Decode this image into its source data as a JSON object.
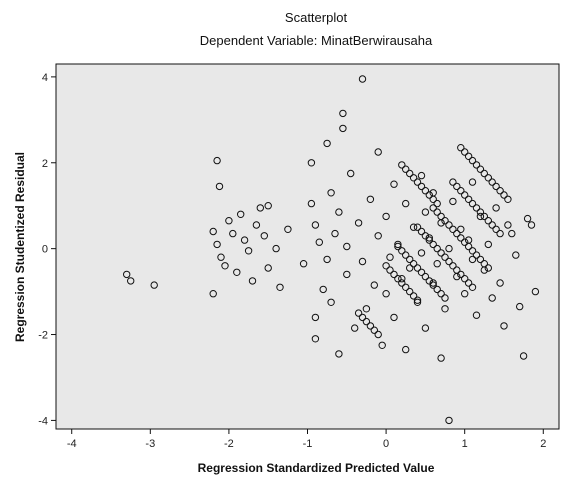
{
  "chart_data": {
    "type": "scatter",
    "title": "Scatterplot",
    "subtitle": "Dependent Variable: MinatBerwirausaha",
    "xlabel": "Regression Standardized Predicted Value",
    "ylabel": "Regression Studentized Residual",
    "xlim": [
      -4.2,
      2.2
    ],
    "ylim": [
      -4.2,
      4.3
    ],
    "x_ticks": [
      -4,
      -3,
      -2,
      -1,
      0,
      1,
      2
    ],
    "x_tick_labels": [
      "-4",
      "-3",
      "-2",
      "-1",
      "0",
      "1",
      "2"
    ],
    "y_ticks": [
      -4,
      -2,
      0,
      2,
      4
    ],
    "y_tick_labels": [
      "-4",
      "-2",
      "0",
      "2",
      "4"
    ],
    "background": "#e8e8e8",
    "marker": "open-circle",
    "grid": false,
    "legend": "none",
    "points": [
      [
        -3.3,
        -0.6
      ],
      [
        -3.25,
        -0.75
      ],
      [
        -2.95,
        -0.85
      ],
      [
        -2.2,
        -1.05
      ],
      [
        -2.15,
        2.05
      ],
      [
        -2.12,
        1.45
      ],
      [
        -2.2,
        0.4
      ],
      [
        -2.15,
        0.1
      ],
      [
        -2.1,
        -0.2
      ],
      [
        -2.05,
        -0.4
      ],
      [
        -2.0,
        0.65
      ],
      [
        -1.95,
        0.35
      ],
      [
        -1.9,
        -0.55
      ],
      [
        -1.85,
        0.8
      ],
      [
        -1.8,
        0.2
      ],
      [
        -1.75,
        -0.05
      ],
      [
        -1.7,
        -0.75
      ],
      [
        -1.65,
        0.55
      ],
      [
        -1.6,
        0.95
      ],
      [
        -1.55,
        0.3
      ],
      [
        -1.5,
        -0.45
      ],
      [
        -1.5,
        1.0
      ],
      [
        -1.4,
        0.0
      ],
      [
        -1.35,
        -0.9
      ],
      [
        -1.25,
        0.45
      ],
      [
        -1.05,
        -0.35
      ],
      [
        -0.95,
        2.0
      ],
      [
        -0.95,
        1.05
      ],
      [
        -0.9,
        -1.6
      ],
      [
        -0.9,
        -2.1
      ],
      [
        -0.9,
        0.55
      ],
      [
        -0.85,
        0.15
      ],
      [
        -0.8,
        -0.95
      ],
      [
        -0.75,
        2.45
      ],
      [
        -0.75,
        -0.25
      ],
      [
        -0.7,
        1.3
      ],
      [
        -0.7,
        -1.25
      ],
      [
        -0.65,
        0.35
      ],
      [
        -0.6,
        -2.45
      ],
      [
        -0.6,
        0.85
      ],
      [
        -0.55,
        3.15
      ],
      [
        -0.55,
        2.8
      ],
      [
        -0.5,
        -0.6
      ],
      [
        -0.5,
        0.05
      ],
      [
        -0.45,
        1.75
      ],
      [
        -0.4,
        -1.85
      ],
      [
        -0.35,
        0.6
      ],
      [
        -0.3,
        3.95
      ],
      [
        -0.3,
        -0.3
      ],
      [
        -0.25,
        -1.4
      ],
      [
        -0.2,
        1.15
      ],
      [
        -0.15,
        -0.85
      ],
      [
        -0.1,
        0.3
      ],
      [
        -0.1,
        2.25
      ],
      [
        -0.05,
        -2.25
      ],
      [
        0.0,
        -1.05
      ],
      [
        0.0,
        0.75
      ],
      [
        0.05,
        -0.2
      ],
      [
        0.1,
        -1.6
      ],
      [
        0.1,
        1.5
      ],
      [
        0.15,
        0.1
      ],
      [
        0.2,
        -0.7
      ],
      [
        0.25,
        1.05
      ],
      [
        0.25,
        -2.35
      ],
      [
        0.3,
        -0.45
      ],
      [
        0.35,
        0.5
      ],
      [
        0.4,
        -1.25
      ],
      [
        0.45,
        1.7
      ],
      [
        0.45,
        -0.1
      ],
      [
        0.5,
        0.85
      ],
      [
        0.5,
        -1.85
      ],
      [
        0.55,
        0.25
      ],
      [
        0.6,
        -0.8
      ],
      [
        0.6,
        1.3
      ],
      [
        0.65,
        -0.35
      ],
      [
        0.7,
        0.6
      ],
      [
        0.7,
        -2.55
      ],
      [
        0.75,
        -1.4
      ],
      [
        0.8,
        0.0
      ],
      [
        0.8,
        -4.0
      ],
      [
        0.85,
        1.1
      ],
      [
        0.9,
        -0.65
      ],
      [
        0.95,
        0.45
      ],
      [
        1.0,
        -1.05
      ],
      [
        1.05,
        0.2
      ],
      [
        1.1,
        1.55
      ],
      [
        1.1,
        -0.25
      ],
      [
        1.15,
        -1.55
      ],
      [
        1.2,
        0.75
      ],
      [
        1.25,
        -0.5
      ],
      [
        1.3,
        0.1
      ],
      [
        1.35,
        -1.15
      ],
      [
        1.4,
        0.95
      ],
      [
        1.45,
        -0.8
      ],
      [
        1.5,
        -1.8
      ],
      [
        1.55,
        0.55
      ],
      [
        1.6,
        0.35
      ],
      [
        1.65,
        -0.15
      ],
      [
        1.7,
        -1.35
      ],
      [
        1.75,
        -2.5
      ],
      [
        1.8,
        0.7
      ],
      [
        1.85,
        0.55
      ],
      [
        1.9,
        -1.0
      ],
      [
        0.95,
        2.35
      ],
      [
        1.0,
        2.25
      ],
      [
        1.05,
        2.15
      ],
      [
        1.1,
        2.05
      ],
      [
        1.15,
        1.95
      ],
      [
        1.2,
        1.85
      ],
      [
        1.25,
        1.75
      ],
      [
        1.3,
        1.65
      ],
      [
        1.35,
        1.55
      ],
      [
        1.4,
        1.45
      ],
      [
        1.45,
        1.35
      ],
      [
        1.5,
        1.25
      ],
      [
        1.55,
        1.15
      ],
      [
        0.85,
        1.55
      ],
      [
        0.9,
        1.45
      ],
      [
        0.95,
        1.35
      ],
      [
        1.0,
        1.25
      ],
      [
        1.05,
        1.15
      ],
      [
        1.1,
        1.05
      ],
      [
        1.15,
        0.95
      ],
      [
        1.2,
        0.85
      ],
      [
        1.25,
        0.75
      ],
      [
        1.3,
        0.65
      ],
      [
        1.35,
        0.55
      ],
      [
        1.4,
        0.45
      ],
      [
        1.45,
        0.35
      ],
      [
        0.6,
        0.95
      ],
      [
        0.65,
        0.85
      ],
      [
        0.7,
        0.75
      ],
      [
        0.75,
        0.65
      ],
      [
        0.8,
        0.55
      ],
      [
        0.85,
        0.45
      ],
      [
        0.9,
        0.35
      ],
      [
        0.95,
        0.25
      ],
      [
        1.0,
        0.15
      ],
      [
        1.05,
        0.05
      ],
      [
        1.1,
        -0.05
      ],
      [
        1.15,
        -0.15
      ],
      [
        1.2,
        -0.25
      ],
      [
        1.25,
        -0.35
      ],
      [
        1.3,
        -0.45
      ],
      [
        0.4,
        0.5
      ],
      [
        0.45,
        0.4
      ],
      [
        0.5,
        0.3
      ],
      [
        0.55,
        0.2
      ],
      [
        0.6,
        0.1
      ],
      [
        0.65,
        0.0
      ],
      [
        0.7,
        -0.1
      ],
      [
        0.75,
        -0.2
      ],
      [
        0.8,
        -0.3
      ],
      [
        0.85,
        -0.4
      ],
      [
        0.9,
        -0.5
      ],
      [
        0.95,
        -0.6
      ],
      [
        1.0,
        -0.7
      ],
      [
        1.05,
        -0.8
      ],
      [
        1.1,
        -0.9
      ],
      [
        0.15,
        0.05
      ],
      [
        0.2,
        -0.05
      ],
      [
        0.25,
        -0.15
      ],
      [
        0.3,
        -0.25
      ],
      [
        0.35,
        -0.35
      ],
      [
        0.4,
        -0.45
      ],
      [
        0.45,
        -0.55
      ],
      [
        0.5,
        -0.65
      ],
      [
        0.55,
        -0.75
      ],
      [
        0.6,
        -0.85
      ],
      [
        0.65,
        -0.95
      ],
      [
        0.7,
        -1.05
      ],
      [
        0.75,
        -1.15
      ],
      [
        0.0,
        -0.4
      ],
      [
        0.05,
        -0.5
      ],
      [
        0.1,
        -0.6
      ],
      [
        0.15,
        -0.7
      ],
      [
        0.2,
        -0.8
      ],
      [
        0.25,
        -0.9
      ],
      [
        0.3,
        -1.0
      ],
      [
        0.35,
        -1.1
      ],
      [
        0.4,
        -1.2
      ],
      [
        0.2,
        1.95
      ],
      [
        0.25,
        1.85
      ],
      [
        0.3,
        1.75
      ],
      [
        0.35,
        1.65
      ],
      [
        0.4,
        1.55
      ],
      [
        0.45,
        1.45
      ],
      [
        0.5,
        1.35
      ],
      [
        0.55,
        1.25
      ],
      [
        0.6,
        1.15
      ],
      [
        0.65,
        1.05
      ],
      [
        -0.35,
        -1.5
      ],
      [
        -0.3,
        -1.6
      ],
      [
        -0.25,
        -1.7
      ],
      [
        -0.2,
        -1.8
      ],
      [
        -0.15,
        -1.9
      ],
      [
        -0.1,
        -2.0
      ]
    ]
  }
}
